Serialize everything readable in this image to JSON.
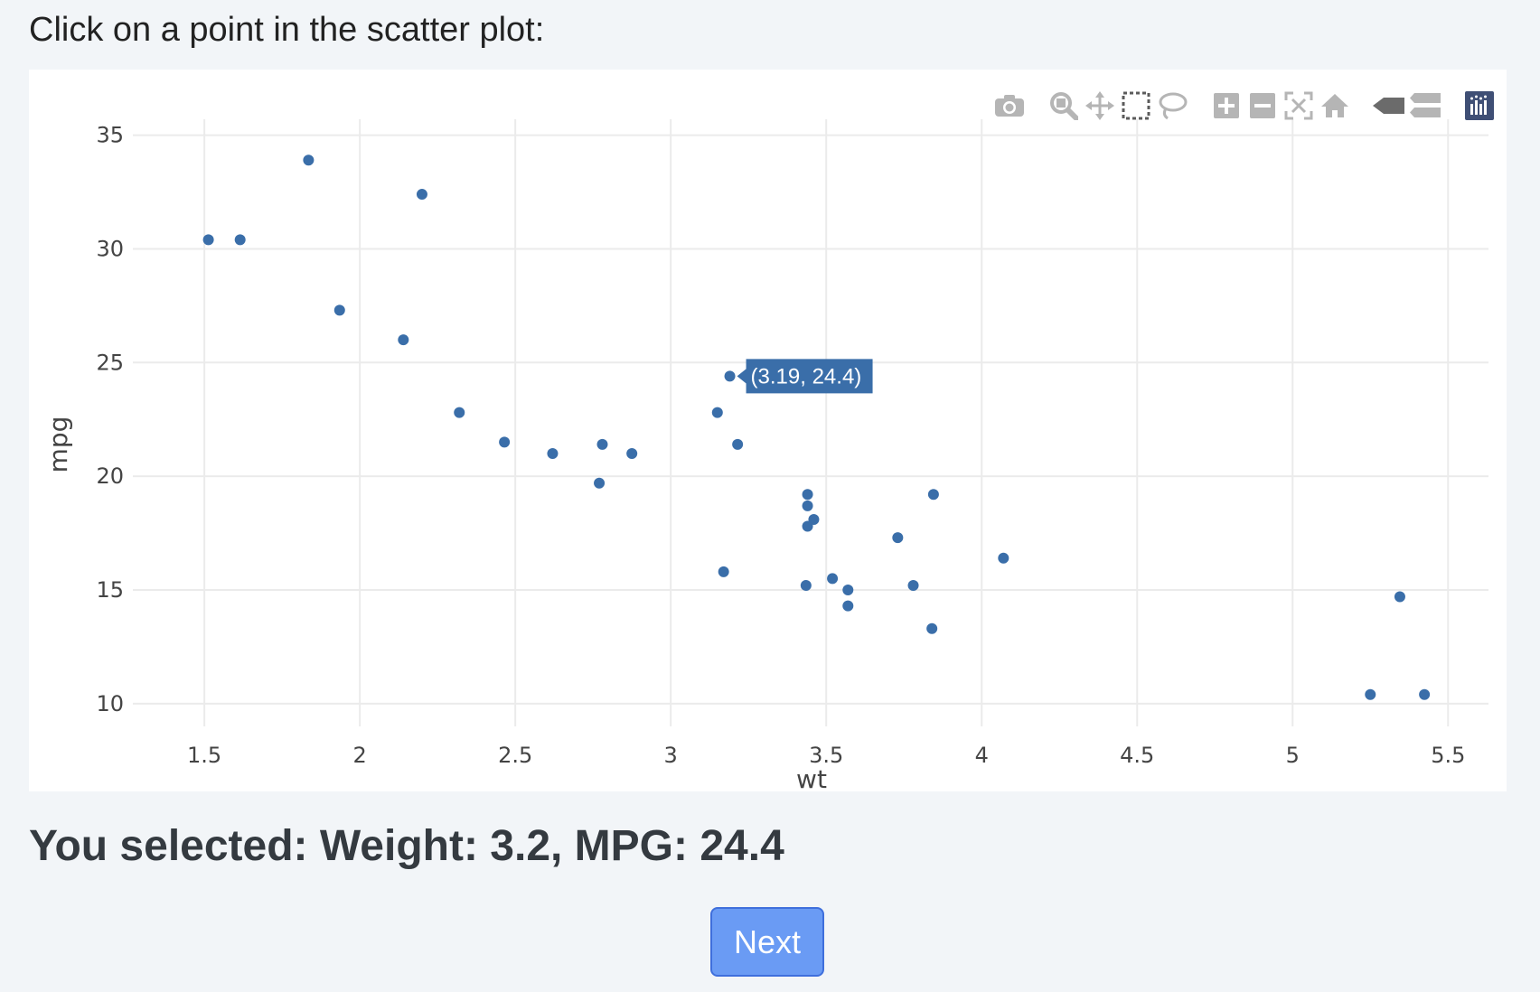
{
  "page": {
    "instruction": "Click on a point in the scatter plot:",
    "selection_text": "You selected: Weight: 3.2, MPG: 24.4",
    "next_label": "Next"
  },
  "modebar": {
    "buttons": [
      {
        "icon": "camera-icon",
        "name": "download-plot-button"
      },
      {
        "icon": "zoom-icon",
        "name": "zoom-button"
      },
      {
        "icon": "pan-icon",
        "name": "pan-button"
      },
      {
        "icon": "box-select-icon",
        "name": "box-select-button"
      },
      {
        "icon": "lasso-select-icon",
        "name": "lasso-select-button"
      },
      {
        "icon": "zoom-in-icon",
        "name": "zoom-in-button"
      },
      {
        "icon": "zoom-out-icon",
        "name": "zoom-out-button"
      },
      {
        "icon": "autoscale-icon",
        "name": "autoscale-button"
      },
      {
        "icon": "reset-axes-icon",
        "name": "reset-axes-button"
      },
      {
        "icon": "spike-lines-icon",
        "name": "spike-lines-button"
      },
      {
        "icon": "compare-hover-icon",
        "name": "compare-hover-button"
      },
      {
        "icon": "plotly-logo-icon",
        "name": "plotly-logo-link"
      }
    ]
  },
  "colors": {
    "marker": "#3a6ea9",
    "grid": "#ebebeb",
    "tooltip_bg": "#3a6ea9",
    "next_bg": "#6a9bf4"
  },
  "chart_data": {
    "type": "scatter",
    "xlabel": "wt",
    "ylabel": "mpg",
    "xlim": [
      1.27,
      5.63
    ],
    "ylim": [
      9.0,
      35.7
    ],
    "xticks": [
      1.5,
      2,
      2.5,
      3,
      3.5,
      4,
      4.5,
      5,
      5.5
    ],
    "xtick_labels": [
      "1.5",
      "2",
      "2.5",
      "3",
      "3.5",
      "4",
      "4.5",
      "5",
      "5.5"
    ],
    "yticks": [
      10,
      15,
      20,
      25,
      30,
      35
    ],
    "ytick_labels": [
      "10",
      "15",
      "20",
      "25",
      "30",
      "35"
    ],
    "grid": true,
    "points": [
      {
        "x": 2.62,
        "y": 21.0
      },
      {
        "x": 2.875,
        "y": 21.0
      },
      {
        "x": 2.32,
        "y": 22.8
      },
      {
        "x": 3.215,
        "y": 21.4
      },
      {
        "x": 3.44,
        "y": 18.7
      },
      {
        "x": 3.46,
        "y": 18.1
      },
      {
        "x": 3.57,
        "y": 14.3
      },
      {
        "x": 3.19,
        "y": 24.4
      },
      {
        "x": 3.15,
        "y": 22.8
      },
      {
        "x": 3.44,
        "y": 19.2
      },
      {
        "x": 3.44,
        "y": 17.8
      },
      {
        "x": 4.07,
        "y": 16.4
      },
      {
        "x": 3.73,
        "y": 17.3
      },
      {
        "x": 3.78,
        "y": 15.2
      },
      {
        "x": 5.25,
        "y": 10.4
      },
      {
        "x": 5.424,
        "y": 10.4
      },
      {
        "x": 5.345,
        "y": 14.7
      },
      {
        "x": 2.2,
        "y": 32.4
      },
      {
        "x": 1.615,
        "y": 30.4
      },
      {
        "x": 1.835,
        "y": 33.9
      },
      {
        "x": 2.465,
        "y": 21.5
      },
      {
        "x": 3.52,
        "y": 15.5
      },
      {
        "x": 3.435,
        "y": 15.2
      },
      {
        "x": 3.84,
        "y": 13.3
      },
      {
        "x": 3.845,
        "y": 19.2
      },
      {
        "x": 1.935,
        "y": 27.3
      },
      {
        "x": 2.14,
        "y": 26.0
      },
      {
        "x": 1.513,
        "y": 30.4
      },
      {
        "x": 3.17,
        "y": 15.8
      },
      {
        "x": 2.77,
        "y": 19.7
      },
      {
        "x": 3.57,
        "y": 15.0
      },
      {
        "x": 2.78,
        "y": 21.4
      }
    ],
    "hover": {
      "x": 3.19,
      "y": 24.4,
      "label": "(3.19, 24.4)"
    }
  }
}
